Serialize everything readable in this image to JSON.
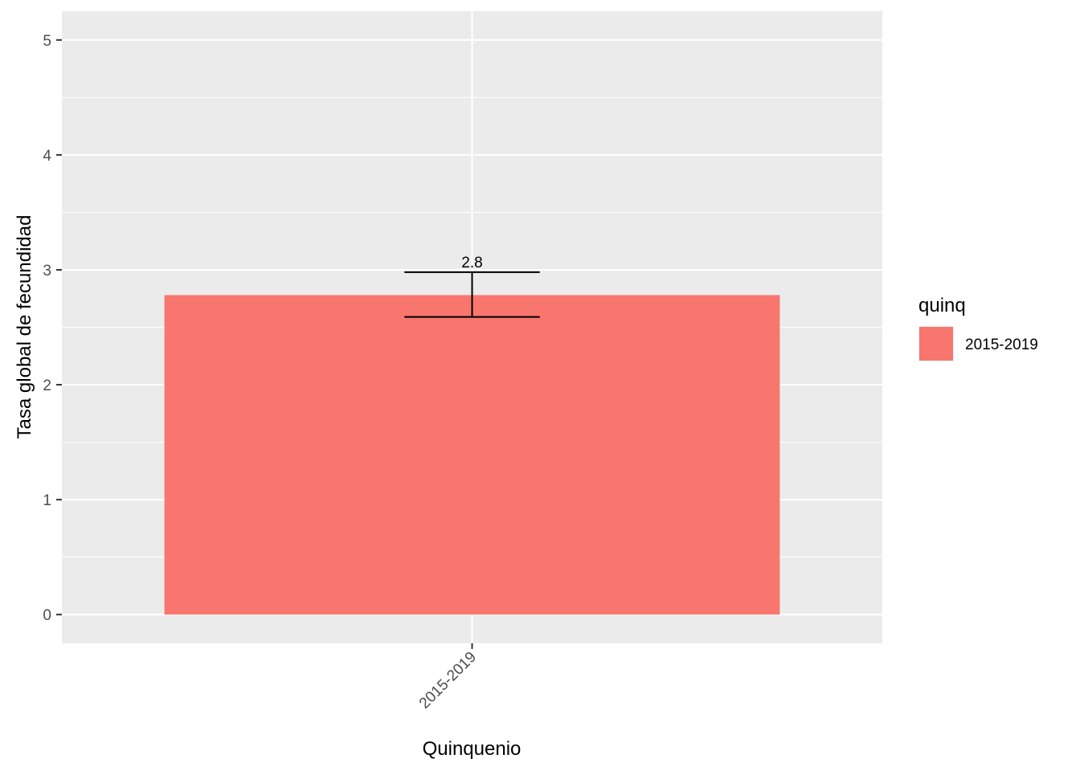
{
  "chart_data": {
    "type": "bar",
    "categories": [
      "2015-2019"
    ],
    "values": [
      2.78
    ],
    "error_bars": [
      {
        "low": 2.59,
        "high": 2.98
      }
    ],
    "data_labels": [
      "2.8"
    ],
    "title": "",
    "xlabel": "Quinquenio",
    "ylabel": "Tasa global de fecundidad",
    "ylim": [
      -0.25,
      5.25
    ],
    "yticks": [
      0,
      1,
      2,
      3,
      4,
      5
    ],
    "grid": true,
    "legend": {
      "title": "quinq",
      "placement": "right",
      "entries": [
        {
          "label": "2015-2019",
          "color": "#F8766D"
        }
      ]
    },
    "colors": {
      "bar": "#F8766D",
      "panel": "#EBEBEB",
      "grid": "#FFFFFF",
      "error_bar": "#000000"
    }
  }
}
